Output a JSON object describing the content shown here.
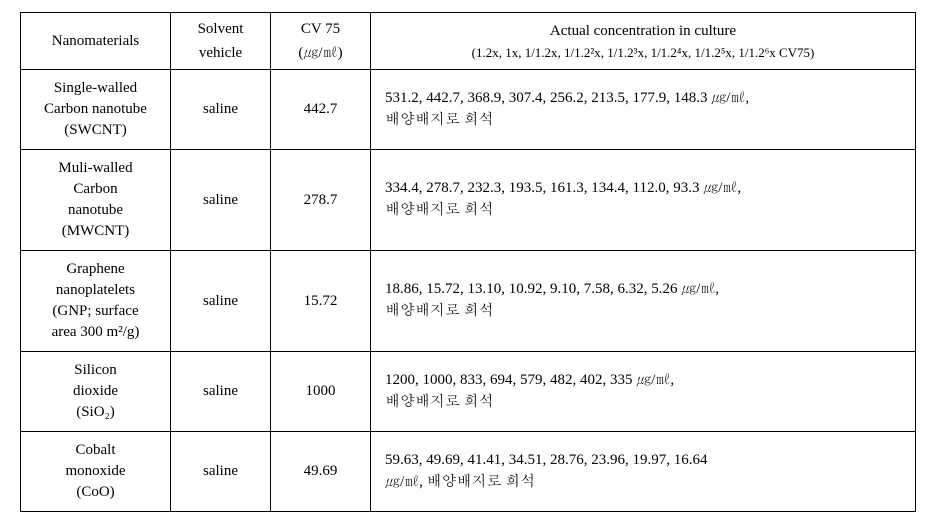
{
  "headers": {
    "nanomaterials": "Nanomaterials",
    "solvent_vehicle_l1": "Solvent",
    "solvent_vehicle_l2": "vehicle",
    "cv75_l1": "CV 75",
    "cv75_l2": "(㎍/㎖)",
    "actual_conc_l1": "Actual concentration in culture",
    "actual_conc_l2": "(1.2x, 1x, 1/1.2x, 1/1.2²x, 1/1.2³x, 1/1.2⁴x, 1/1.2⁵x, 1/1.2⁶x CV75)"
  },
  "rows": [
    {
      "name_l1": "Single-walled",
      "name_l2": "Carbon nanotube",
      "name_l3": "(SWCNT)",
      "solvent": "saline",
      "cv75": "442.7",
      "conc_l1": "531.2, 442.7, 368.9, 307.4, 256.2, 213.5, 177.9, 148.3 ㎍/㎖,",
      "conc_l2": "배양배지로 희석"
    },
    {
      "name_l1": "Muli-walled",
      "name_l2": "Carbon",
      "name_l3": "nanotube",
      "name_l4": "(MWCNT)",
      "solvent": "saline",
      "cv75": "278.7",
      "conc_l1": "334.4, 278.7, 232.3, 193.5, 161.3, 134.4, 112.0, 93.3 ㎍/㎖,",
      "conc_l2": "배양배지로 희석"
    },
    {
      "name_l1": "Graphene",
      "name_l2": "nanoplatelets",
      "name_l3": "(GNP; surface",
      "name_l4": "area 300 m²/g)",
      "solvent": "saline",
      "cv75": "15.72",
      "conc_l1": "18.86, 15.72, 13.10, 10.92, 9.10, 7.58, 6.32, 5.26 ㎍/㎖,",
      "conc_l2": "배양배지로 희석"
    },
    {
      "name_l1": "Silicon",
      "name_l2": "dioxide",
      "name_l3": "(SiO₂)",
      "solvent": "saline",
      "cv75": "1000",
      "conc_l1": "1200, 1000, 833, 694, 579, 482, 402, 335 ㎍/㎖,",
      "conc_l2": "배양배지로 희석"
    },
    {
      "name_l1": "Cobalt",
      "name_l2": "monoxide",
      "name_l3": "(CoO)",
      "solvent": "saline",
      "cv75": "49.69",
      "conc_l1": "59.63, 49.69, 41.41, 34.51, 28.76, 23.96, 19.97, 16.64",
      "conc_l2": "㎍/㎖, 배양배지로 희석"
    }
  ]
}
